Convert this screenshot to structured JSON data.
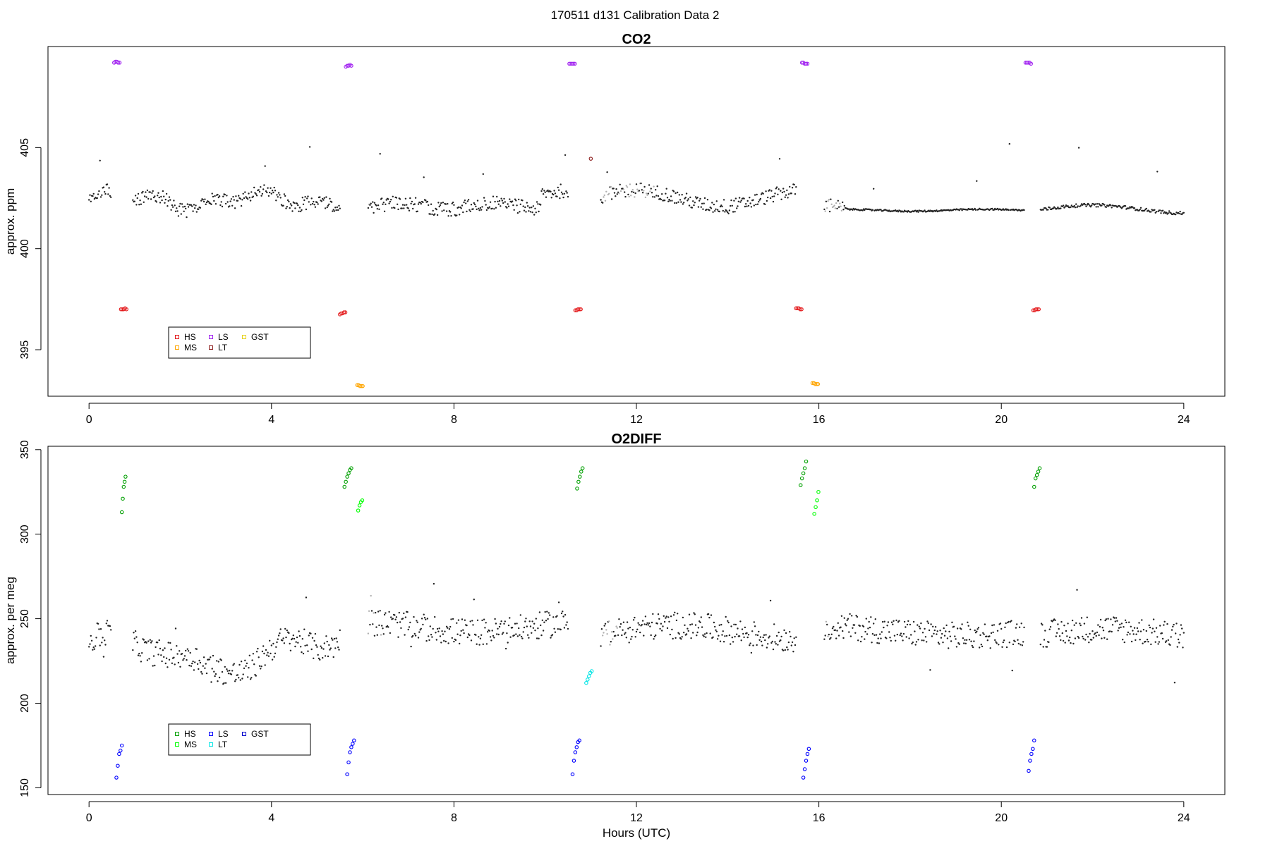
{
  "figure": {
    "title": "170511   d131   Calibration Data 2",
    "xlabel": "Hours (UTC)"
  },
  "chart_data": [
    {
      "type": "scatter",
      "title": "CO2",
      "xlabel": "",
      "ylabel": "approx. ppm",
      "xlim": [
        -0.9,
        24.9
      ],
      "ylim": [
        392.7,
        410.0
      ],
      "xticks": [
        0,
        4,
        8,
        12,
        16,
        20,
        24
      ],
      "yticks": [
        395,
        400,
        405
      ],
      "legend": {
        "placement": "bottom-left",
        "entries": [
          {
            "name": "HS",
            "color": "#e41a1c"
          },
          {
            "name": "MS",
            "color": "#ffa500"
          },
          {
            "name": "LS",
            "color": "#a020f0"
          },
          {
            "name": "LT",
            "color": "#8b1a1a"
          },
          {
            "name": "GST",
            "color": "#e6d21e"
          }
        ]
      },
      "series": [
        {
          "name": "LS",
          "color": "#a020f0",
          "x": [
            0.55,
            0.58,
            0.61,
            0.64,
            0.67,
            5.63,
            5.66,
            5.69,
            5.72,
            5.75,
            10.53,
            10.56,
            10.59,
            10.62,
            10.65,
            15.63,
            15.66,
            15.69,
            15.72,
            15.75,
            20.53,
            20.56,
            20.59,
            20.62,
            20.65
          ],
          "y": [
            409.2,
            409.25,
            409.25,
            409.2,
            409.2,
            409.0,
            409.05,
            409.05,
            409.1,
            409.05,
            409.15,
            409.15,
            409.15,
            409.15,
            409.15,
            409.2,
            409.2,
            409.15,
            409.15,
            409.15,
            409.2,
            409.2,
            409.2,
            409.2,
            409.15
          ]
        },
        {
          "name": "HS",
          "color": "#e41a1c",
          "x": [
            0.7,
            0.73,
            0.76,
            0.79,
            0.82,
            5.5,
            5.53,
            5.56,
            5.59,
            5.62,
            10.66,
            10.69,
            10.72,
            10.75,
            10.78,
            15.5,
            15.53,
            15.56,
            15.59,
            15.62,
            20.7,
            20.73,
            20.76,
            20.79,
            20.82
          ],
          "y": [
            397.0,
            397.0,
            397.0,
            397.05,
            397.0,
            396.75,
            396.8,
            396.8,
            396.85,
            396.85,
            396.95,
            396.95,
            397.0,
            397.0,
            397.0,
            397.05,
            397.05,
            397.05,
            397.0,
            397.0,
            396.95,
            396.95,
            397.0,
            397.0,
            397.0
          ]
        },
        {
          "name": "MS",
          "color": "#ffa500",
          "x": [
            5.88,
            5.91,
            5.94,
            5.97,
            6.0,
            15.86,
            15.89,
            15.92,
            15.95,
            15.98
          ],
          "y": [
            393.25,
            393.25,
            393.2,
            393.2,
            393.2,
            393.35,
            393.35,
            393.3,
            393.3,
            393.3
          ]
        },
        {
          "name": "LT",
          "color": "#8b1a1a",
          "x": [
            11.0
          ],
          "y": [
            404.45
          ]
        }
      ],
      "gap_hours": [
        [
          0.5,
          0.95
        ],
        [
          5.5,
          6.1
        ],
        [
          10.5,
          11.2
        ],
        [
          15.5,
          16.1
        ],
        [
          20.5,
          20.85
        ]
      ]
    },
    {
      "type": "scatter",
      "title": "O2DIFF",
      "xlabel": "Hours (UTC)",
      "ylabel": "approx. per meg",
      "xlim": [
        -0.9,
        24.9
      ],
      "ylim": [
        146,
        352
      ],
      "xticks": [
        0,
        4,
        8,
        12,
        16,
        20,
        24
      ],
      "yticks": [
        150,
        200,
        250,
        300,
        350
      ],
      "legend": {
        "placement": "bottom-left",
        "entries": [
          {
            "name": "HS",
            "color": "#00a000"
          },
          {
            "name": "MS",
            "color": "#00ff00"
          },
          {
            "name": "LS",
            "color": "#0000ff"
          },
          {
            "name": "LT",
            "color": "#00e5e5"
          },
          {
            "name": "GST",
            "color": "#0000cd"
          }
        ]
      },
      "series": [
        {
          "name": "HS",
          "color": "#00a000",
          "x": [
            0.72,
            0.74,
            0.76,
            0.78,
            0.8,
            5.6,
            5.63,
            5.66,
            5.69,
            5.72,
            5.75,
            10.7,
            10.73,
            10.76,
            10.79,
            10.82,
            15.6,
            15.63,
            15.66,
            15.69,
            15.72,
            20.72,
            20.75,
            20.78,
            20.81,
            20.84
          ],
          "y": [
            313,
            321,
            328,
            331,
            334,
            328,
            331,
            334,
            336,
            338,
            339,
            327,
            331,
            334,
            337,
            339,
            329,
            333,
            336,
            339,
            343,
            328,
            333,
            335,
            337,
            339
          ]
        },
        {
          "name": "MS",
          "color": "#00ff00",
          "x": [
            5.9,
            5.93,
            5.96,
            5.99,
            15.9,
            15.93,
            15.96,
            15.99
          ],
          "y": [
            314,
            317,
            319,
            320,
            312,
            316,
            320,
            325
          ]
        },
        {
          "name": "LS",
          "color": "#0000ff",
          "x": [
            0.6,
            0.63,
            0.66,
            0.69,
            0.72,
            5.66,
            5.69,
            5.72,
            5.75,
            5.78,
            5.81,
            10.6,
            10.63,
            10.66,
            10.69,
            10.72,
            10.75,
            15.66,
            15.69,
            15.72,
            15.75,
            15.78,
            20.6,
            20.63,
            20.66,
            20.69,
            20.72
          ],
          "y": [
            156,
            163,
            170,
            172,
            175,
            158,
            165,
            171,
            174,
            176,
            178,
            158,
            166,
            171,
            174,
            177,
            178,
            156,
            161,
            166,
            170,
            173,
            160,
            166,
            170,
            173,
            178
          ]
        },
        {
          "name": "LT",
          "color": "#00e5e5",
          "x": [
            10.9,
            10.93,
            10.96,
            10.99,
            11.02
          ],
          "y": [
            212,
            214,
            216,
            218,
            219
          ]
        }
      ],
      "gap_hours": [
        [
          0.5,
          0.95
        ],
        [
          5.5,
          6.1
        ],
        [
          10.5,
          11.2
        ],
        [
          15.5,
          16.1
        ],
        [
          20.5,
          20.85
        ]
      ]
    }
  ]
}
